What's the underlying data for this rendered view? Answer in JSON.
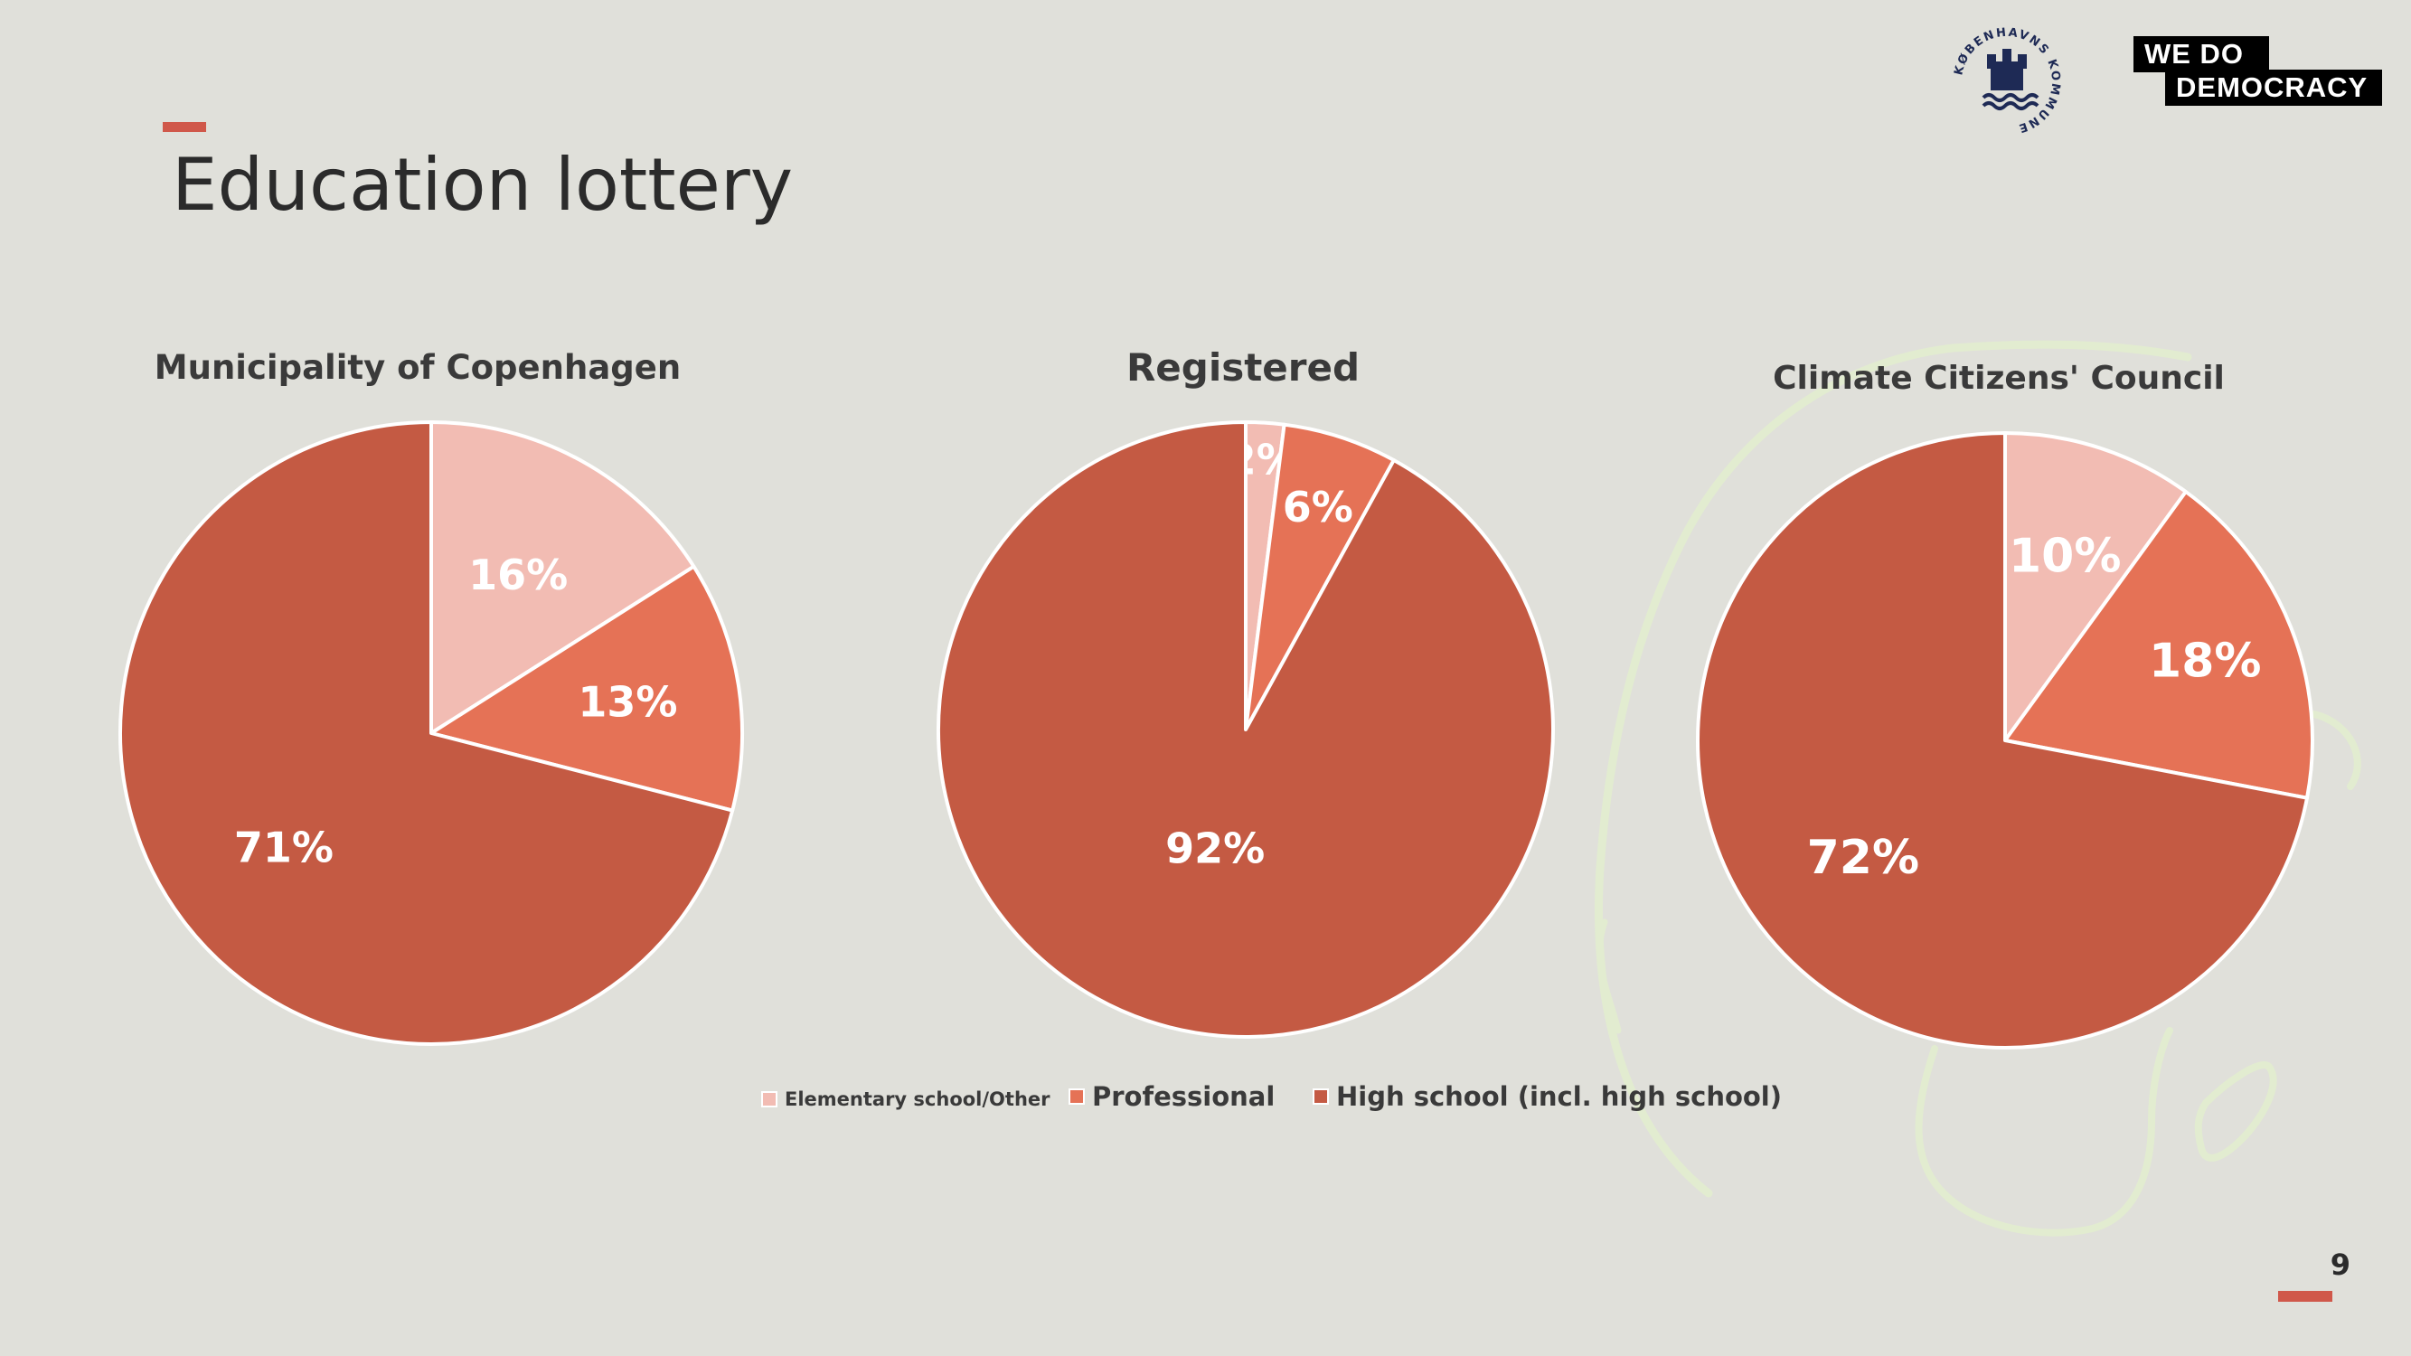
{
  "page": {
    "title": "Education lottery",
    "page_number": "9",
    "logos": {
      "municipality_seal_text": "KØBENHAVNS KOMMUNE",
      "wdd_line1": "WE  DO",
      "wdd_line2": "DEMOCRACY"
    }
  },
  "colors": {
    "background": "#e0e0da",
    "accent": "#d0584a",
    "elementary": "#f2bcb3",
    "professional": "#e57256",
    "high_school": "#c45a43",
    "outline": "#ffffff"
  },
  "legend": [
    {
      "label": "Elementary school/Other",
      "color": "#f2bcb3"
    },
    {
      "label": "Professional",
      "color": "#e57256"
    },
    {
      "label": "High school (incl. high school)",
      "color": "#c45a43"
    }
  ],
  "chart_data": [
    {
      "type": "pie",
      "title": "Municipality of Copenhagen",
      "categories": [
        "Elementary school/Other",
        "Professional",
        "High school (incl. high school)"
      ],
      "values": [
        16,
        13,
        71
      ],
      "labels": [
        "16%",
        "13%",
        "71%"
      ],
      "start_angle": "12 o'clock",
      "direction": "clockwise"
    },
    {
      "type": "pie",
      "title": "Registered",
      "categories": [
        "Elementary school/Other",
        "Professional",
        "High school (incl. high school)"
      ],
      "values": [
        2,
        6,
        92
      ],
      "labels": [
        "2%",
        "6%",
        "92%"
      ],
      "start_angle": "12 o'clock",
      "direction": "clockwise"
    },
    {
      "type": "pie",
      "title": "Climate Citizens' Council",
      "categories": [
        "Elementary school/Other",
        "Professional",
        "High school (incl. high school)"
      ],
      "values": [
        10,
        18,
        72
      ],
      "labels": [
        "10%",
        "18%",
        "72%"
      ],
      "start_angle": "12 o'clock",
      "direction": "clockwise"
    }
  ]
}
